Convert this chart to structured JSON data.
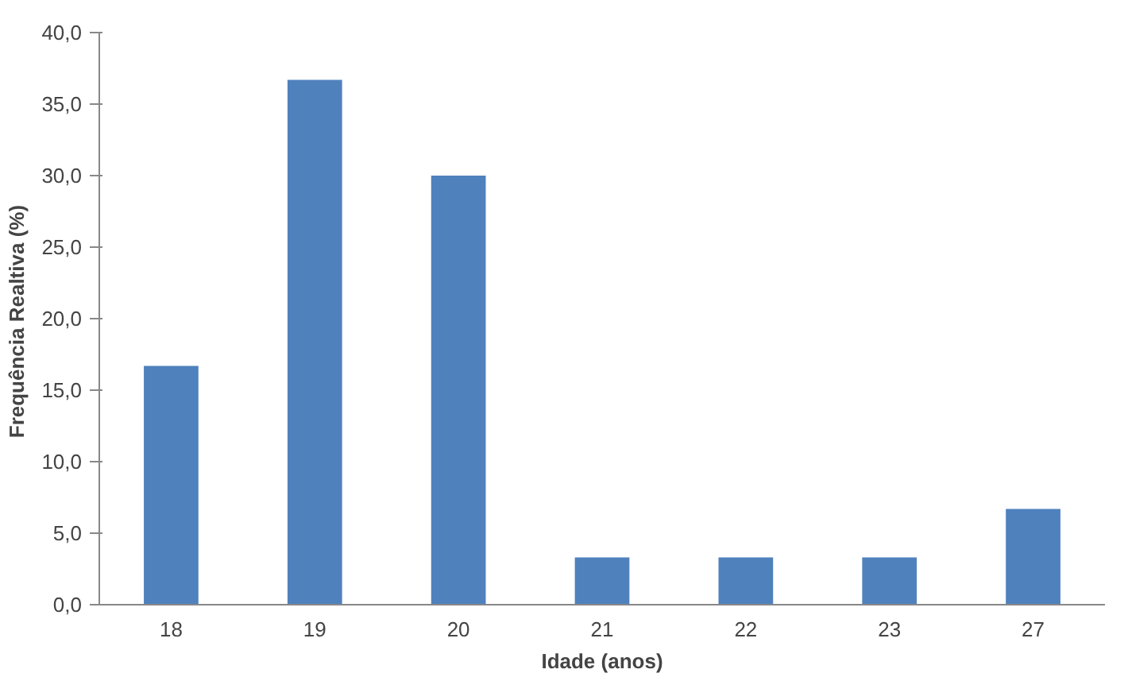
{
  "chart_data": {
    "type": "bar",
    "xlabel": "Idade (anos)",
    "ylabel": "Frequência Realtiva  (%)",
    "categories": [
      "18",
      "19",
      "20",
      "21",
      "22",
      "23",
      "27"
    ],
    "values": [
      16.7,
      36.7,
      30.0,
      3.3,
      3.3,
      3.3,
      6.7
    ],
    "color": "#4f81bd",
    "ylim": [
      0,
      40
    ],
    "yticks": [
      {
        "value": 0,
        "label": "0,0"
      },
      {
        "value": 5,
        "label": "5,0"
      },
      {
        "value": 10,
        "label": "10,0"
      },
      {
        "value": 15,
        "label": "15,0"
      },
      {
        "value": 20,
        "label": "20,0"
      },
      {
        "value": 25,
        "label": "25,0"
      },
      {
        "value": 30,
        "label": "30,0"
      },
      {
        "value": 35,
        "label": "35,0"
      },
      {
        "value": 40,
        "label": "40,0"
      }
    ],
    "grid": false
  }
}
